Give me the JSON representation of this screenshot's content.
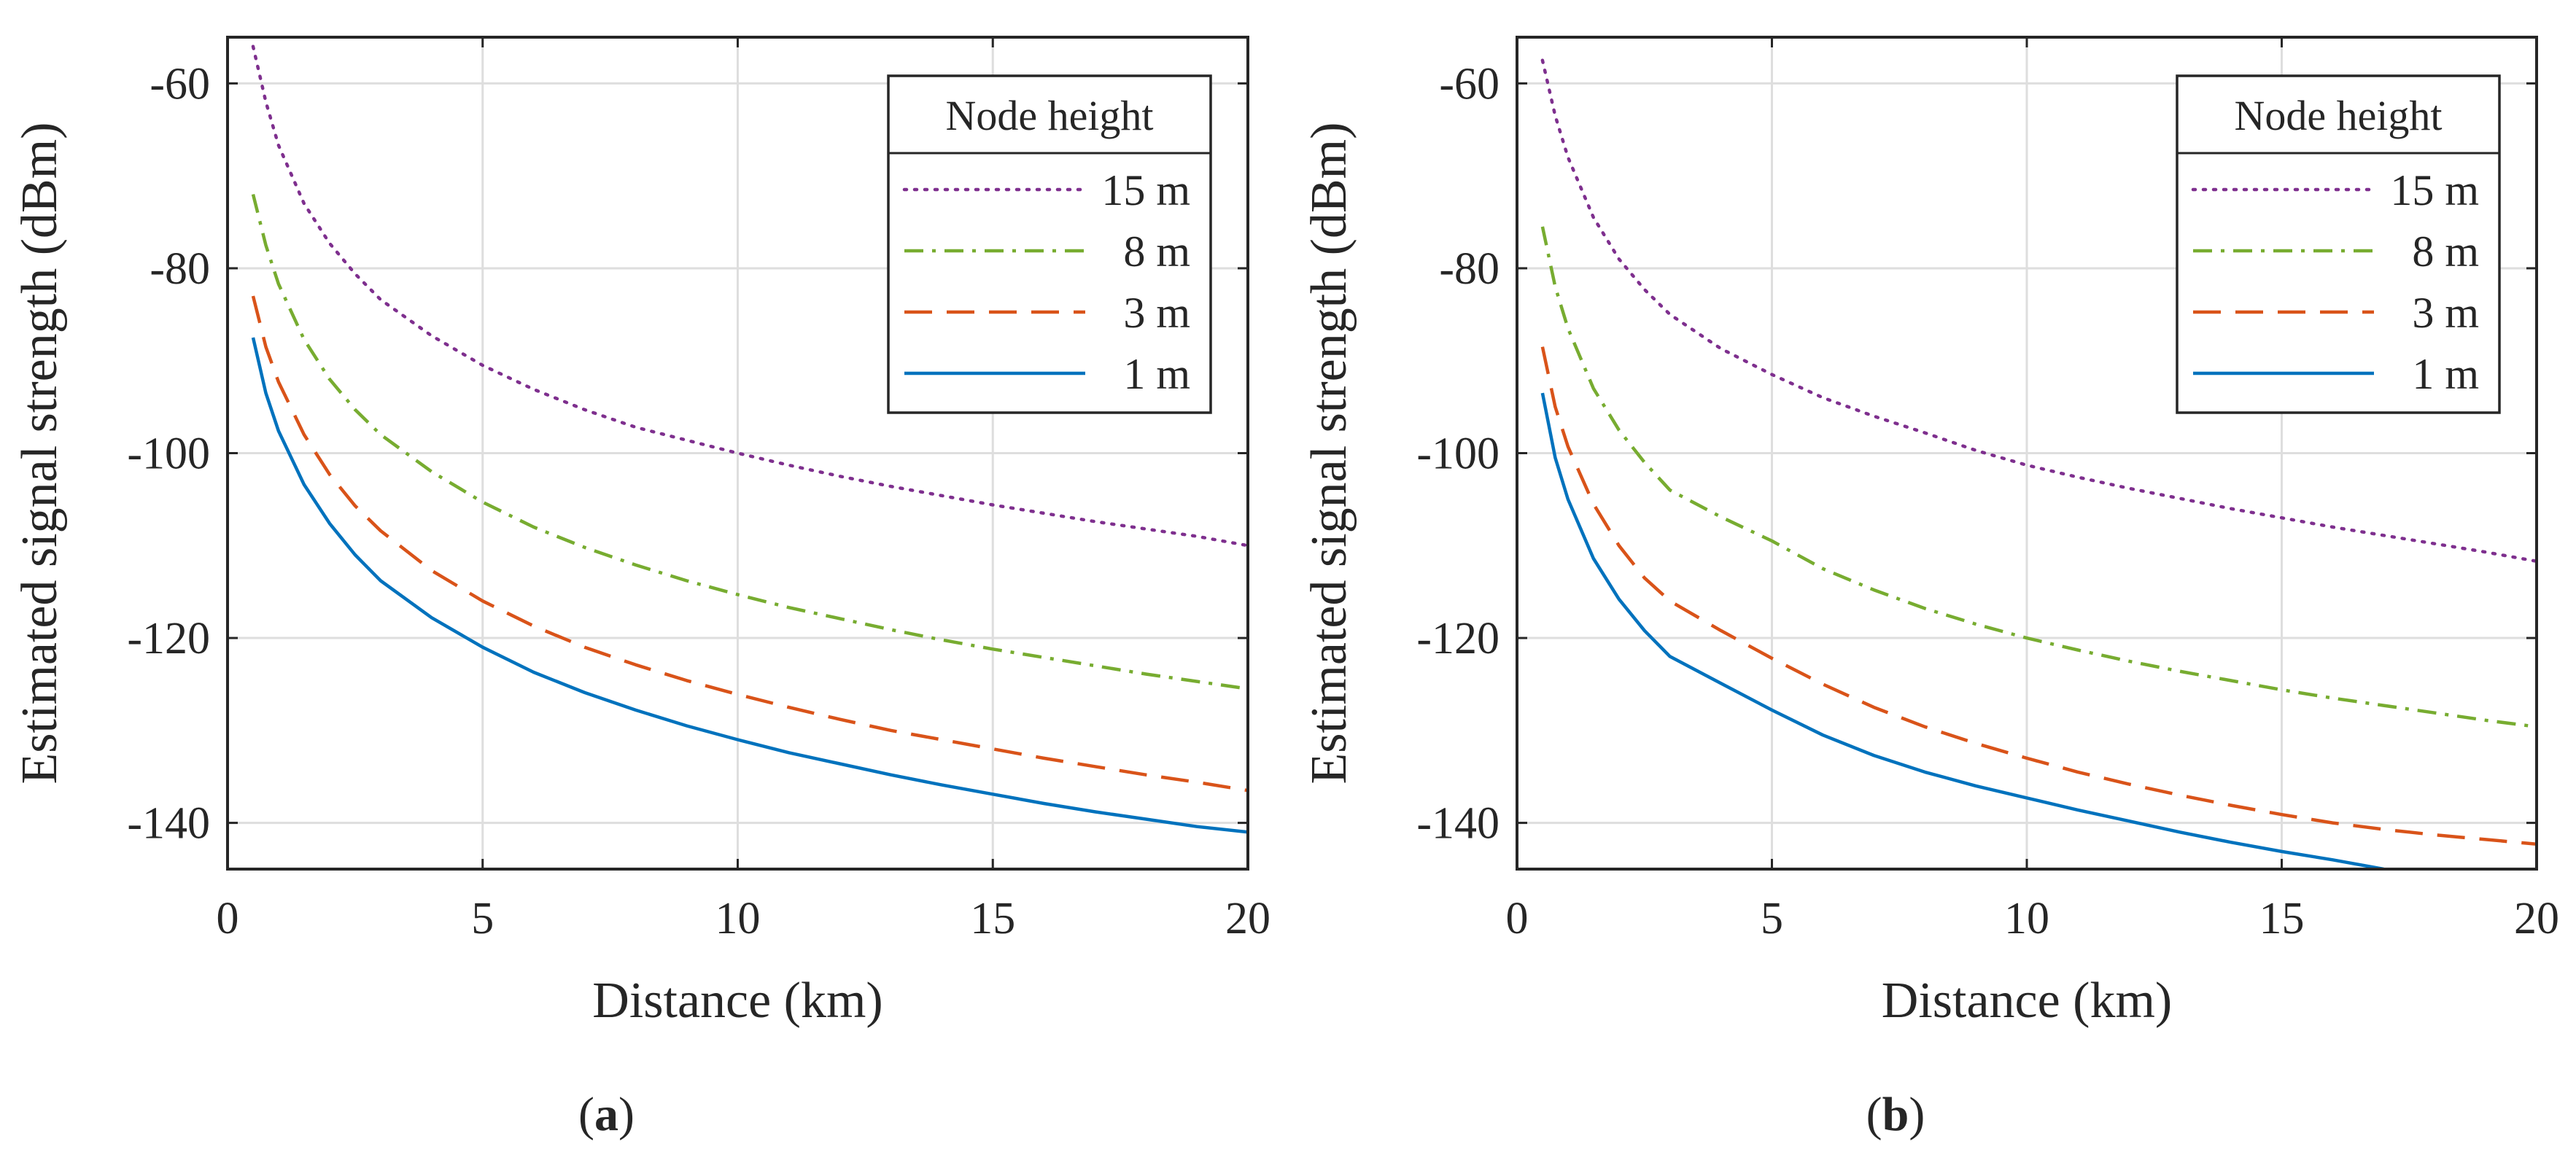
{
  "chart_data": [
    {
      "type": "line",
      "panel_label": "(a)",
      "xlabel": "Distance (km)",
      "ylabel": "Estimated signal strength (dBm)",
      "xlim": [
        0,
        20
      ],
      "ylim": [
        -145,
        -55
      ],
      "xticks": [
        0,
        5,
        10,
        15,
        20
      ],
      "yticks": [
        -60,
        -80,
        -100,
        -120,
        -140
      ],
      "grid": true,
      "legend": {
        "title": "Node height",
        "position": "top-right"
      },
      "x": [
        0.5,
        0.75,
        1,
        1.5,
        2,
        2.5,
        3,
        4,
        5,
        6,
        7,
        8,
        9,
        10,
        11,
        12,
        13,
        14,
        15,
        16,
        17,
        18,
        19,
        20
      ],
      "series": [
        {
          "name": "15 m",
          "color": "#7E2F8E",
          "style": "dotted",
          "values": [
            -56,
            -62,
            -66.7,
            -73,
            -77.3,
            -80.6,
            -83.4,
            -87.3,
            -90.5,
            -93.1,
            -95.3,
            -97.2,
            -98.6,
            -100,
            -101.3,
            -102.5,
            -103.6,
            -104.6,
            -105.6,
            -106.5,
            -107.4,
            -108.2,
            -109,
            -110
          ]
        },
        {
          "name": "8 m",
          "color": "#77AC30",
          "style": "dashdot",
          "values": [
            -72,
            -77.5,
            -81.7,
            -87.7,
            -92,
            -95.3,
            -98,
            -102,
            -105.3,
            -108,
            -110.2,
            -112.1,
            -113.8,
            -115.3,
            -116.7,
            -117.9,
            -119.1,
            -120.2,
            -121.2,
            -122.1,
            -123,
            -123.9,
            -124.7,
            -125.5
          ]
        },
        {
          "name": "3 m",
          "color": "#D95319",
          "style": "dashed",
          "values": [
            -83,
            -88.5,
            -92.3,
            -98,
            -102.3,
            -105.7,
            -108.4,
            -112.7,
            -116,
            -118.7,
            -121,
            -122.9,
            -124.6,
            -126.1,
            -127.5,
            -128.8,
            -130,
            -131,
            -132,
            -133,
            -133.9,
            -134.8,
            -135.6,
            -136.5
          ]
        },
        {
          "name": "1 m",
          "color": "#0072BD",
          "style": "solid",
          "values": [
            -87.5,
            -93.5,
            -97.6,
            -103.4,
            -107.6,
            -111,
            -113.8,
            -117.8,
            -121,
            -123.7,
            -125.9,
            -127.8,
            -129.5,
            -131,
            -132.4,
            -133.6,
            -134.8,
            -135.9,
            -136.9,
            -137.9,
            -138.8,
            -139.6,
            -140.4,
            -141
          ]
        }
      ]
    },
    {
      "type": "line",
      "panel_label": "(b)",
      "xlabel": "Distance (km)",
      "ylabel": "Estimated signal strength (dBm)",
      "xlim": [
        0,
        20
      ],
      "ylim": [
        -145,
        -55
      ],
      "xticks": [
        0,
        5,
        10,
        15,
        20
      ],
      "yticks": [
        -60,
        -80,
        -100,
        -120,
        -140
      ],
      "grid": true,
      "legend": {
        "title": "Node height",
        "position": "top-right"
      },
      "x": [
        0.5,
        0.75,
        1,
        1.5,
        2,
        2.5,
        3,
        4,
        5,
        6,
        7,
        8,
        9,
        10,
        11,
        12,
        13,
        14,
        15,
        16,
        17,
        18,
        19,
        20
      ],
      "series": [
        {
          "name": "15 m",
          "color": "#7E2F8E",
          "style": "dotted",
          "values": [
            -57.5,
            -63.5,
            -68,
            -74.5,
            -79,
            -82.3,
            -85,
            -88.7,
            -91.5,
            -94,
            -96,
            -97.8,
            -99.7,
            -101.3,
            -102.6,
            -103.8,
            -104.9,
            -106,
            -107,
            -108,
            -108.9,
            -109.8,
            -110.7,
            -111.7
          ]
        },
        {
          "name": "8 m",
          "color": "#77AC30",
          "style": "dashdot",
          "values": [
            -75.5,
            -82,
            -86.5,
            -93,
            -97.5,
            -101,
            -104,
            -106.9,
            -109.5,
            -112.5,
            -114.8,
            -116.8,
            -118.5,
            -120,
            -121.3,
            -122.5,
            -123.6,
            -124.6,
            -125.6,
            -126.5,
            -127.3,
            -128.1,
            -128.9,
            -129.6
          ]
        },
        {
          "name": "3 m",
          "color": "#D95319",
          "style": "dashed",
          "values": [
            -88.5,
            -95,
            -99.3,
            -105.5,
            -110,
            -113.5,
            -116,
            -119.2,
            -122.2,
            -125,
            -127.5,
            -129.6,
            -131.4,
            -133,
            -134.5,
            -135.8,
            -137,
            -138.1,
            -139.1,
            -140,
            -140.7,
            -141.3,
            -141.8,
            -142.3
          ]
        },
        {
          "name": "1 m",
          "color": "#0072BD",
          "style": "solid",
          "values": [
            -93.5,
            -100.5,
            -105,
            -111.4,
            -115.8,
            -119.2,
            -122,
            -124.9,
            -127.8,
            -130.5,
            -132.7,
            -134.5,
            -136,
            -137.3,
            -138.6,
            -139.8,
            -141,
            -142.1,
            -143.1,
            -144,
            -145,
            null,
            null,
            null
          ]
        }
      ]
    }
  ]
}
